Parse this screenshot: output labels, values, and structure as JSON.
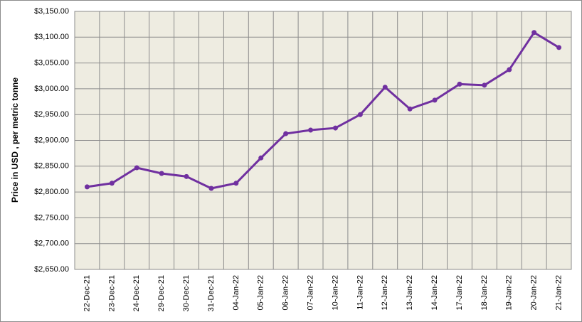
{
  "chart_data": {
    "type": "line",
    "y_label": "Price in USD , per metric tonne",
    "categories": [
      "22-Dec-21",
      "23-Dec-21",
      "24-Dec-21",
      "29-Dec-21",
      "30-Dec-21",
      "31-Dec-21",
      "04-Jan-22",
      "05-Jan-22",
      "06-Jan-22",
      "07-Jan-22",
      "10-Jan-22",
      "11-Jan-22",
      "12-Jan-22",
      "13-Jan-22",
      "14-Jan-22",
      "17-Jan-22",
      "18-Jan-22",
      "19-Jan-22",
      "20-Jan-22",
      "21-Jan-22"
    ],
    "values": [
      2810,
      2817,
      2847,
      2836,
      2830,
      2807,
      2817,
      2866,
      2913,
      2920,
      2924,
      2950,
      3003,
      2961,
      2978,
      3009,
      3007,
      3037,
      3109,
      3080
    ],
    "color": "#7030a0",
    "ylim": [
      2650,
      3150
    ],
    "yticks": [
      {
        "value": 2650,
        "label": "$2,650.00"
      },
      {
        "value": 2700,
        "label": "$2,700.00"
      },
      {
        "value": 2750,
        "label": "$2,750.00"
      },
      {
        "value": 2800,
        "label": "$2,800.00"
      },
      {
        "value": 2850,
        "label": "$2,850.00"
      },
      {
        "value": 2900,
        "label": "$2,900.00"
      },
      {
        "value": 2950,
        "label": "$2,950.00"
      },
      {
        "value": 3000,
        "label": "$3,000.00"
      },
      {
        "value": 3050,
        "label": "$3,050.00"
      },
      {
        "value": 3100,
        "label": "$3,100.00"
      },
      {
        "value": 3150,
        "label": "$3,150.00"
      }
    ],
    "grid": true
  }
}
